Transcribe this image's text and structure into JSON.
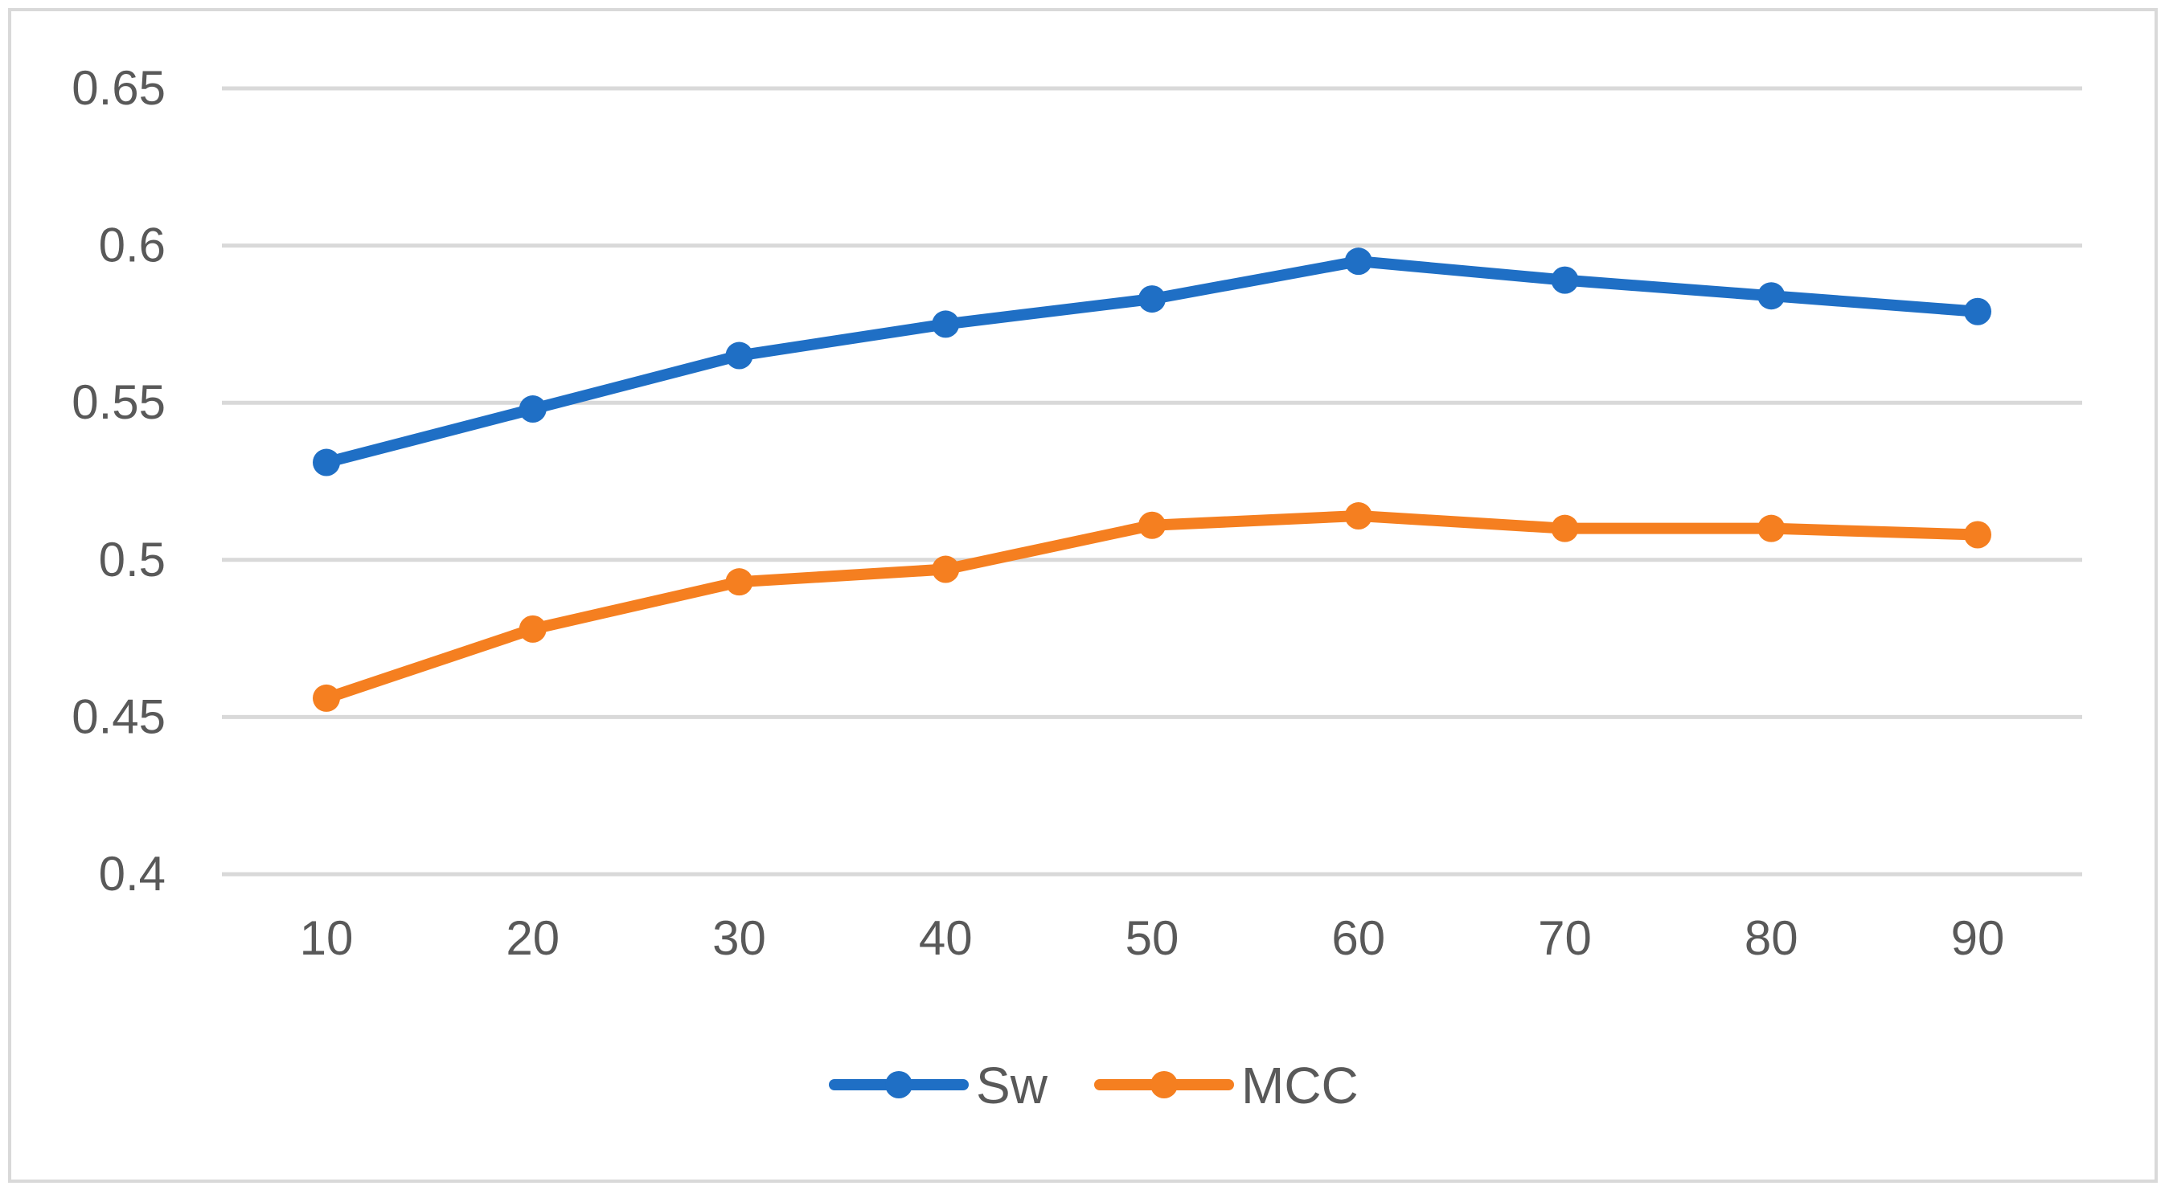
{
  "chart_data": {
    "type": "line",
    "title": "",
    "xlabel": "",
    "ylabel": "",
    "x": [
      10,
      20,
      30,
      40,
      50,
      60,
      70,
      80,
      90
    ],
    "x_tick_labels": [
      "10",
      "20",
      "30",
      "40",
      "50",
      "60",
      "70",
      "80",
      "90"
    ],
    "ylim": [
      0.4,
      0.65
    ],
    "y_ticks": [
      0.4,
      0.45,
      0.5,
      0.55,
      0.6,
      0.65
    ],
    "y_tick_labels": [
      "0.4",
      "0.45",
      "0.5",
      "0.55",
      "0.6",
      "0.65"
    ],
    "grid": "horizontal",
    "legend_position": "bottom",
    "series": [
      {
        "name": "Sw",
        "color": "#1f6fc5",
        "values": [
          0.531,
          0.548,
          0.565,
          0.575,
          0.583,
          0.595,
          0.589,
          0.584,
          0.579
        ]
      },
      {
        "name": "MCC",
        "color": "#f57f20",
        "values": [
          0.456,
          0.478,
          0.493,
          0.497,
          0.511,
          0.514,
          0.51,
          0.51,
          0.508
        ]
      }
    ]
  }
}
